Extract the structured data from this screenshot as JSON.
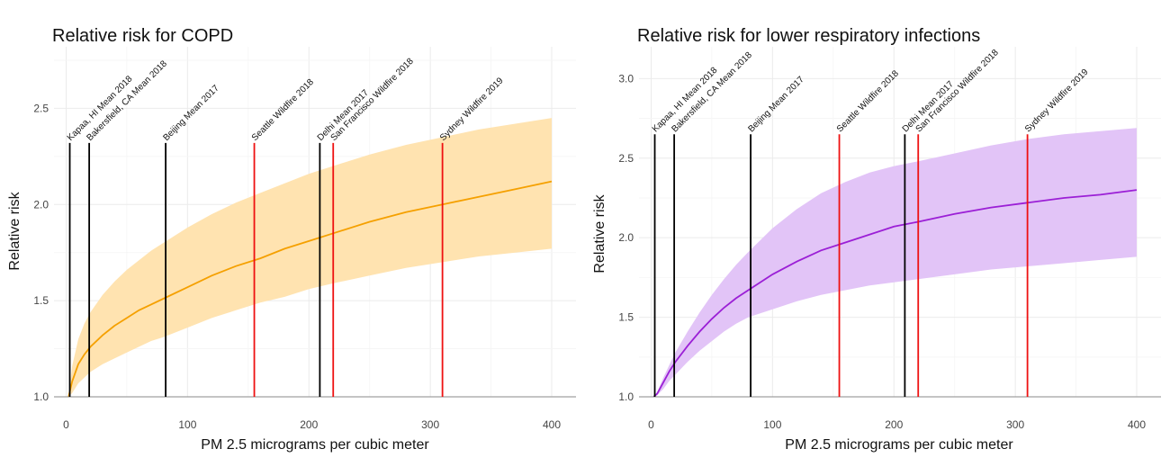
{
  "chart_data": [
    {
      "type": "line",
      "title": "Relative risk for COPD",
      "xlabel": "PM 2.5 micrograms per cubic meter",
      "ylabel": "Relative risk",
      "xlim": [
        -10,
        420
      ],
      "ylim": [
        1.0,
        2.82
      ],
      "xticks": [
        0,
        100,
        200,
        300,
        400
      ],
      "yticks": [
        1.0,
        1.5,
        2.0,
        2.5
      ],
      "ytick_labels": [
        "1.0",
        "1.5",
        "2.0",
        "2.5"
      ],
      "line_color": "#F5A000",
      "band_color": "#FFE3B0",
      "series": [
        {
          "name": "mean",
          "x": [
            2,
            5,
            10,
            15,
            20,
            30,
            40,
            50,
            60,
            70,
            80,
            100,
            120,
            140,
            160,
            180,
            200,
            220,
            250,
            280,
            310,
            340,
            370,
            400
          ],
          "values": [
            1.0,
            1.08,
            1.17,
            1.22,
            1.26,
            1.32,
            1.37,
            1.41,
            1.45,
            1.48,
            1.51,
            1.57,
            1.63,
            1.68,
            1.72,
            1.77,
            1.81,
            1.85,
            1.91,
            1.96,
            2.0,
            2.04,
            2.08,
            2.12
          ]
        },
        {
          "name": "upper",
          "x": [
            2,
            5,
            10,
            15,
            20,
            30,
            40,
            50,
            60,
            70,
            80,
            100,
            120,
            140,
            160,
            180,
            200,
            220,
            250,
            280,
            310,
            340,
            370,
            400
          ],
          "values": [
            1.0,
            1.16,
            1.3,
            1.38,
            1.44,
            1.53,
            1.6,
            1.66,
            1.71,
            1.76,
            1.8,
            1.88,
            1.95,
            2.01,
            2.06,
            2.11,
            2.16,
            2.2,
            2.26,
            2.31,
            2.35,
            2.39,
            2.42,
            2.45
          ]
        },
        {
          "name": "lower",
          "x": [
            2,
            5,
            10,
            15,
            20,
            30,
            40,
            50,
            60,
            70,
            80,
            100,
            120,
            140,
            160,
            180,
            200,
            220,
            250,
            280,
            310,
            340,
            370,
            400
          ],
          "values": [
            1.0,
            1.02,
            1.07,
            1.1,
            1.13,
            1.17,
            1.2,
            1.23,
            1.26,
            1.29,
            1.31,
            1.36,
            1.41,
            1.45,
            1.49,
            1.52,
            1.56,
            1.59,
            1.63,
            1.67,
            1.7,
            1.73,
            1.75,
            1.77
          ]
        }
      ],
      "annotations": [
        {
          "label": "Kapaa, HI Mean 2018",
          "x": 3,
          "color": "#000000"
        },
        {
          "label": "Bakersfield, CA Mean 2018",
          "x": 19,
          "color": "#000000"
        },
        {
          "label": "Beijing Mean 2017",
          "x": 82,
          "color": "#000000"
        },
        {
          "label": "Seattle Wildfire 2018",
          "x": 155,
          "color": "#EE1111"
        },
        {
          "label": "Delhi Mean 2017",
          "x": 209,
          "color": "#000000"
        },
        {
          "label": "San Francisco Wildfire 2018",
          "x": 220,
          "color": "#EE1111"
        },
        {
          "label": "Sydney Wildfire 2019",
          "x": 310,
          "color": "#EE1111"
        }
      ],
      "annotation_top": 2.32
    },
    {
      "type": "line",
      "title": "Relative risk for lower respiratory infections",
      "xlabel": "PM 2.5 micrograms per cubic meter",
      "ylabel": "Relative risk",
      "xlim": [
        -10,
        420
      ],
      "ylim": [
        1.0,
        3.2
      ],
      "xticks": [
        0,
        100,
        200,
        300,
        400
      ],
      "yticks": [
        1.0,
        1.5,
        2.0,
        2.5,
        3.0
      ],
      "ytick_labels": [
        "1.0",
        "1.5",
        "2.0",
        "2.5",
        "3.0"
      ],
      "line_color": "#9B1FD6",
      "band_color": "#E2C4F7",
      "series": [
        {
          "name": "mean",
          "x": [
            2,
            5,
            10,
            15,
            20,
            30,
            40,
            50,
            60,
            70,
            80,
            100,
            120,
            140,
            160,
            180,
            200,
            220,
            250,
            280,
            310,
            340,
            370,
            400
          ],
          "values": [
            1.0,
            1.02,
            1.09,
            1.16,
            1.22,
            1.32,
            1.41,
            1.49,
            1.56,
            1.62,
            1.67,
            1.77,
            1.85,
            1.92,
            1.97,
            2.02,
            2.07,
            2.1,
            2.15,
            2.19,
            2.22,
            2.25,
            2.27,
            2.3
          ]
        },
        {
          "name": "upper",
          "x": [
            2,
            5,
            10,
            15,
            20,
            30,
            40,
            50,
            60,
            70,
            80,
            100,
            120,
            140,
            160,
            180,
            200,
            220,
            250,
            280,
            310,
            340,
            370,
            400
          ],
          "values": [
            1.0,
            1.03,
            1.12,
            1.2,
            1.28,
            1.41,
            1.53,
            1.64,
            1.74,
            1.83,
            1.91,
            2.06,
            2.18,
            2.28,
            2.35,
            2.41,
            2.45,
            2.48,
            2.53,
            2.58,
            2.62,
            2.65,
            2.67,
            2.69
          ]
        },
        {
          "name": "lower",
          "x": [
            2,
            5,
            10,
            15,
            20,
            30,
            40,
            50,
            60,
            70,
            80,
            100,
            120,
            140,
            160,
            180,
            200,
            220,
            250,
            280,
            310,
            340,
            370,
            400
          ],
          "values": [
            1.0,
            1.01,
            1.05,
            1.1,
            1.14,
            1.22,
            1.29,
            1.35,
            1.41,
            1.46,
            1.5,
            1.55,
            1.6,
            1.64,
            1.67,
            1.7,
            1.72,
            1.74,
            1.77,
            1.8,
            1.82,
            1.84,
            1.86,
            1.88
          ]
        }
      ],
      "annotations": [
        {
          "label": "Kapaa, HI Mean 2018",
          "x": 3,
          "color": "#000000"
        },
        {
          "label": "Bakersfield, CA Mean 2018",
          "x": 19,
          "color": "#000000"
        },
        {
          "label": "Beijing Mean 2017",
          "x": 82,
          "color": "#000000"
        },
        {
          "label": "Seattle Wildfire 2018",
          "x": 155,
          "color": "#EE1111"
        },
        {
          "label": "Delhi Mean 2017",
          "x": 209,
          "color": "#000000"
        },
        {
          "label": "San Francisco Wildfire 2018",
          "x": 220,
          "color": "#EE1111"
        },
        {
          "label": "Sydney Wildfire 2019",
          "x": 310,
          "color": "#EE1111"
        }
      ],
      "annotation_top": 2.65
    }
  ]
}
